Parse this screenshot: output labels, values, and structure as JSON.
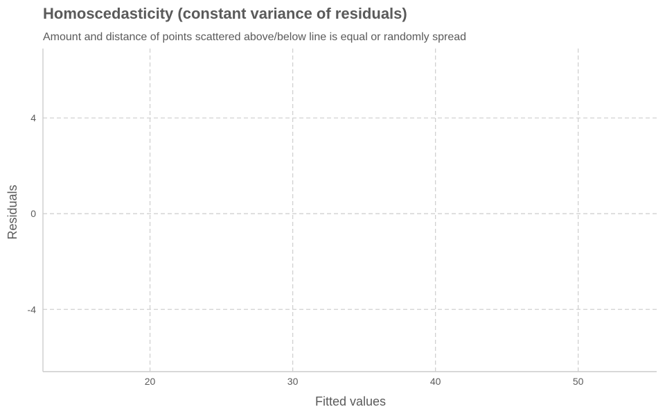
{
  "chart_data": {
    "type": "scatter",
    "title": "Homoscedasticity (constant variance of residuals)",
    "subtitle": "Amount and distance of points scattered above/below line is equal or randomly spread",
    "xlabel": "Fitted values",
    "ylabel": "Residuals",
    "xlim": [
      12.5,
      55.5
    ],
    "ylim": [
      -6.6,
      6.9
    ],
    "x_ticks": [
      20,
      30,
      40,
      50
    ],
    "y_ticks": [
      -4,
      0,
      4
    ],
    "y_tick_labels": [
      "-4",
      "0",
      "4"
    ],
    "grid": true,
    "colors": {
      "points": "#4dab8b",
      "smooth": "#f5ab43"
    },
    "points": [],
    "smooth": []
  }
}
